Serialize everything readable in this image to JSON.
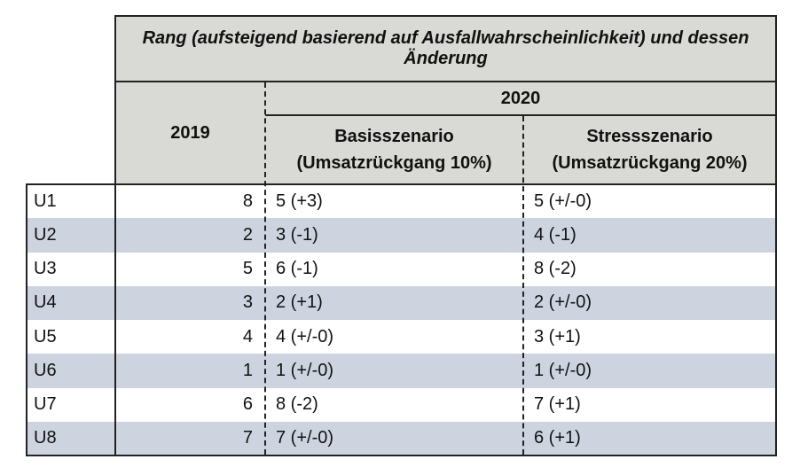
{
  "header": {
    "title": "Rang (aufsteigend basierend auf Ausfallwahrscheinlichkeit) und dessen Änderung",
    "year_2019": "2019",
    "year_2020": "2020",
    "scenarios": [
      "Basisszenario (Umsatzrückgang 10%)",
      "Stressszenario (Umsatzrückgang 20%)"
    ]
  },
  "table": {
    "rows": [
      [
        "U1",
        8,
        "5 (+3)",
        "5 (+/-0)"
      ],
      [
        "U2",
        2,
        "3 (-1)",
        "4 (-1)"
      ],
      [
        "U3",
        5,
        "6 (-1)",
        "8 (-2)"
      ],
      [
        "U4",
        3,
        "2 (+1)",
        "2 (+/-0)"
      ],
      [
        "U5",
        4,
        "4 (+/-0)",
        "3 (+1)"
      ],
      [
        "U6",
        1,
        "1 (+/-0)",
        "1 (+/-0)"
      ],
      [
        "U7",
        6,
        "8 (-2)",
        "7 (+1)"
      ],
      [
        "U8",
        7,
        "7 (+/-0)",
        "6 (+1)"
      ]
    ]
  }
}
